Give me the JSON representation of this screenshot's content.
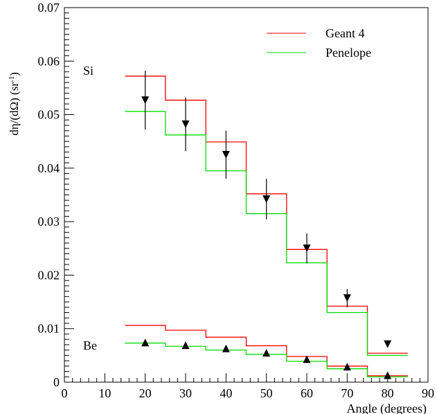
{
  "chart_data": {
    "type": "line",
    "title": "",
    "xlabel": "Angle (degrees)",
    "ylabel_parts": {
      "main": "dη/(dΩ) (sr",
      "sup": "-1",
      "close": ")"
    },
    "xlim": [
      0,
      90
    ],
    "ylim": [
      0,
      0.07
    ],
    "xticks": [
      "0",
      "10",
      "20",
      "30",
      "40",
      "50",
      "60",
      "70",
      "80",
      "90"
    ],
    "yticks": [
      "0",
      "0.01",
      "0.02",
      "0.03",
      "0.04",
      "0.05",
      "0.06",
      "0.07"
    ],
    "grid": false,
    "legend_position": "top-right",
    "bin_edges": [
      15,
      25,
      35,
      45,
      55,
      65,
      75,
      85
    ],
    "series": [
      {
        "name": "Geant 4",
        "group": "Si",
        "kind": "histogram",
        "color": "#ff0000",
        "values": [
          0.0572,
          0.0527,
          0.0449,
          0.0352,
          0.0248,
          0.0142,
          0.0054
        ]
      },
      {
        "name": "Penelope",
        "group": "Si",
        "kind": "histogram",
        "color": "#00dd00",
        "values": [
          0.0506,
          0.0462,
          0.0395,
          0.0315,
          0.0223,
          0.013,
          0.005
        ]
      },
      {
        "name": "Geant 4",
        "group": "Be",
        "kind": "histogram",
        "color": "#ff0000",
        "values": [
          0.0106,
          0.0097,
          0.0084,
          0.0068,
          0.0048,
          0.003,
          0.0012
        ]
      },
      {
        "name": "Penelope",
        "group": "Be",
        "kind": "histogram",
        "color": "#00dd00",
        "values": [
          0.0073,
          0.0067,
          0.006,
          0.0052,
          0.0039,
          0.0025,
          0.001
        ]
      }
    ],
    "data_points": [
      {
        "group": "Si",
        "marker": "triangle-down",
        "x": [
          20,
          30,
          40,
          50,
          60,
          70,
          80
        ],
        "y": [
          0.0527,
          0.0482,
          0.0425,
          0.0342,
          0.025,
          0.0157,
          0.0071
        ],
        "err": [
          0.0055,
          0.005,
          0.0045,
          0.0038,
          0.0028,
          0.0017,
          0
        ]
      },
      {
        "group": "Be",
        "marker": "triangle-up",
        "x": [
          20,
          30,
          40,
          50,
          60,
          70,
          80
        ],
        "y": [
          0.0074,
          0.0069,
          0.0063,
          0.0055,
          0.0043,
          0.0029,
          0.0013
        ],
        "err": [
          0.0006,
          0.0006,
          0.0005,
          0.0005,
          0.0004,
          0.0003,
          0.0002
        ]
      }
    ],
    "annotations": [
      {
        "text": "Si",
        "x": 3.0,
        "y": 0.0583
      },
      {
        "text": "Be",
        "x": 3.0,
        "y": 0.0064
      }
    ],
    "legend": [
      {
        "label": "Geant 4",
        "color": "#ff0000"
      },
      {
        "label": "Penelope",
        "color": "#00dd00"
      }
    ]
  }
}
